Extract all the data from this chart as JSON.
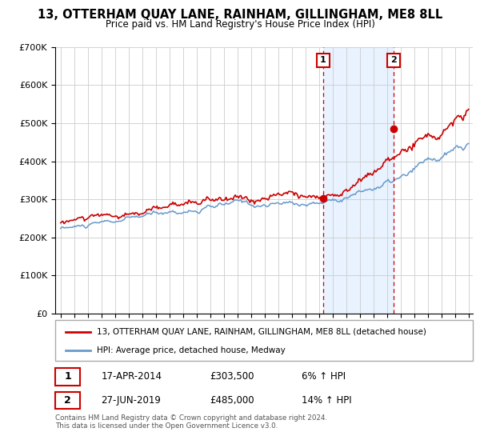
{
  "title": "13, OTTERHAM QUAY LANE, RAINHAM, GILLINGHAM, ME8 8LL",
  "subtitle": "Price paid vs. HM Land Registry's House Price Index (HPI)",
  "legend_label_red": "13, OTTERHAM QUAY LANE, RAINHAM, GILLINGHAM, ME8 8LL (detached house)",
  "legend_label_blue": "HPI: Average price, detached house, Medway",
  "annotation1_date": "17-APR-2014",
  "annotation1_price": "£303,500",
  "annotation1_pct": "6% ↑ HPI",
  "annotation2_date": "27-JUN-2019",
  "annotation2_price": "£485,000",
  "annotation2_pct": "14% ↑ HPI",
  "footer": "Contains HM Land Registry data © Crown copyright and database right 2024.\nThis data is licensed under the Open Government Licence v3.0.",
  "red_color": "#cc0000",
  "blue_color": "#6699cc",
  "blue_fill_color": "#ddeeff",
  "annotation_box_color": "#cc0000",
  "background_color": "#ffffff",
  "grid_color": "#cccccc",
  "ylim": [
    0,
    700000
  ],
  "sale1_x": 2014.29,
  "sale1_y": 303500,
  "sale2_x": 2019.49,
  "sale2_y": 485000,
  "xmin": 1995,
  "xmax": 2025
}
